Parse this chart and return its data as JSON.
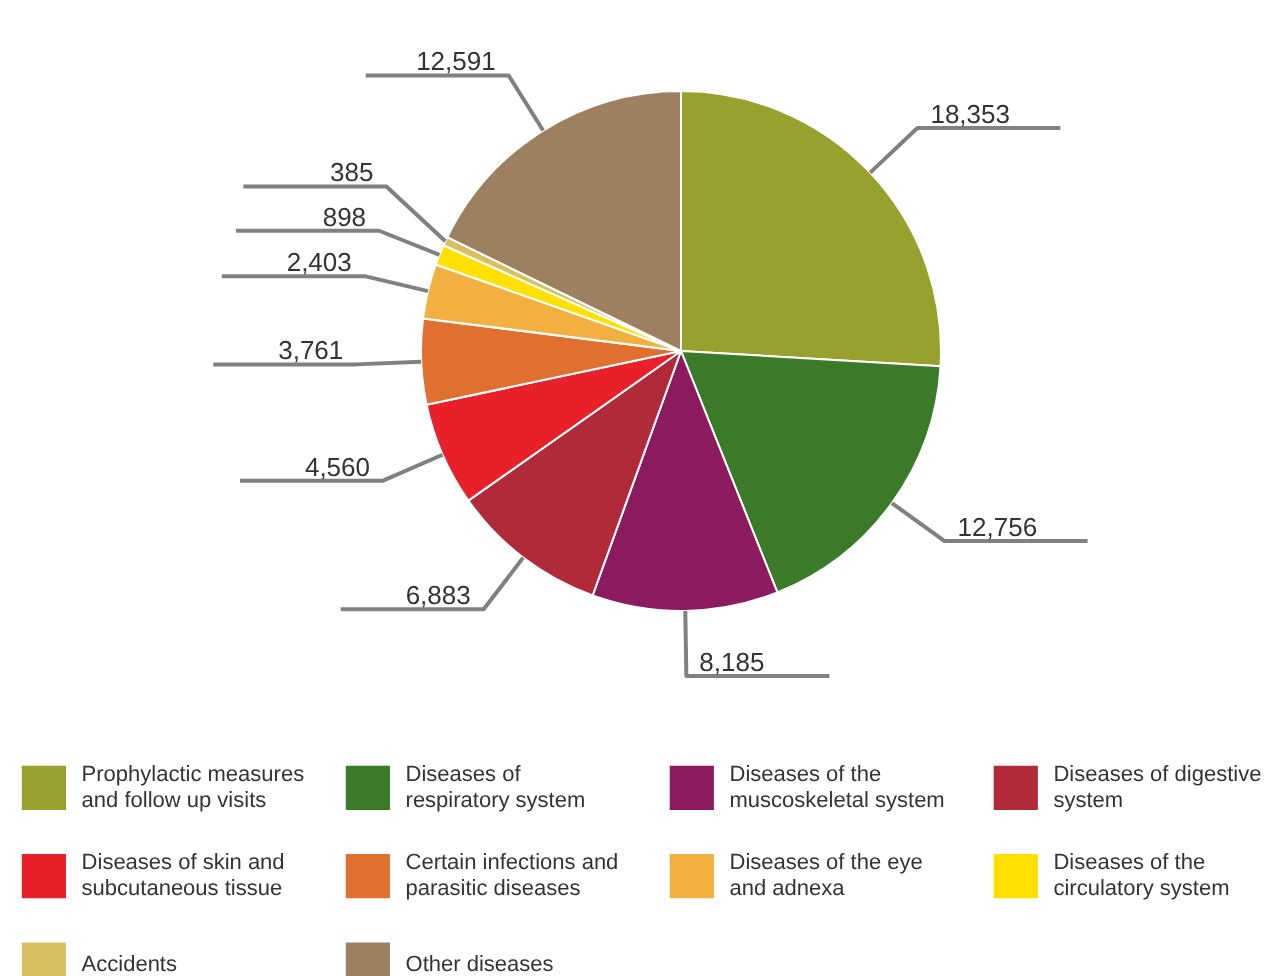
{
  "chart_data": {
    "type": "pie",
    "categories": [
      "Prophylactic measures and follow up visits",
      "Diseases of respiratory system",
      "Diseases of the muscoskeletal system",
      "Diseases of digestive system",
      "Diseases of skin and subcutaneous tissue",
      "Certain infections and parasitic diseases",
      "Diseases of the eye and adnexa",
      "Diseases of the circulatory system",
      "Accidents",
      "Other diseases"
    ],
    "values": [
      18353,
      12756,
      8185,
      6883,
      4560,
      3761,
      2403,
      898,
      385,
      12591
    ],
    "colors": [
      "#98a02e",
      "#3a7a28",
      "#8c1a5e",
      "#b02a3a",
      "#e8202a",
      "#e07030",
      "#f2b040",
      "#ffe000",
      "#d8c060",
      "#9c8060"
    ],
    "value_labels": [
      "18,353",
      "12,756",
      "8,185",
      "6,883",
      "4,560",
      "3,761",
      "2,403",
      "898",
      "385",
      "12,591"
    ],
    "legend": "bottom"
  }
}
